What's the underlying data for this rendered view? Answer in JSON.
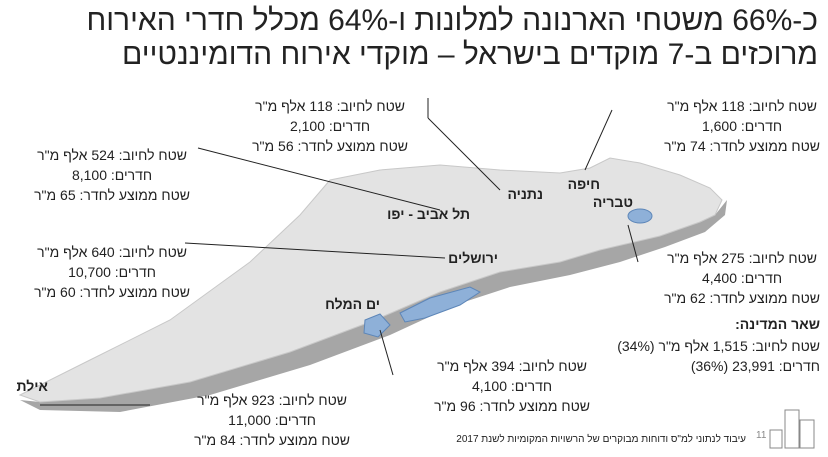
{
  "title": {
    "line1": "כ-66% משטחי הארנונה למלונות ו-64% מכלל חדרי האירוח",
    "line2": "מרוכזים ב-7 מוקדים בישראל – מוקדי אירוח הדומיננטיים"
  },
  "cities": {
    "netanya": "נתניה",
    "tel_aviv": "תל אביב - יפו",
    "haifa": "חיפה",
    "tiberias": "טבריה",
    "jerusalem": "ירושלים",
    "dead_sea": "ים המלח",
    "eilat": "אילת"
  },
  "stats": {
    "netanya": [
      "שטח לחיוב: 118 אלף מ\"ר",
      "חדרים: 2,100",
      "שטח ממוצע לחדר: 56 מ\"ר"
    ],
    "haifa": [
      "שטח לחיוב: 118 אלף מ\"ר",
      "חדרים: 1,600",
      "שטח ממוצע לחדר: 74 מ\"ר"
    ],
    "tel_aviv": [
      "שטח לחיוב: 524 אלף מ\"ר",
      "חדרים: 8,100",
      "שטח ממוצע לחדר: 65 מ\"ר"
    ],
    "jerusalem": [
      "שטח לחיוב: 640 אלף מ\"ר",
      "חדרים: 10,700",
      "שטח ממוצע לחדר: 60 מ\"ר"
    ],
    "tiberias": [
      "שטח לחיוב: 275 אלף מ\"ר",
      "חדרים: 4,400",
      "שטח ממוצע לחדר: 62 מ\"ר"
    ],
    "dead_sea": [
      "שטח לחיוב: 394 אלף מ\"ר",
      "חדרים: 4,100",
      "שטח ממוצע לחדר: 96 מ\"ר"
    ],
    "eilat": [
      "שטח לחיוב: 923 אלף מ\"ר",
      "חדרים: 11,000",
      "שטח ממוצע לחדר: 84 מ\"ר"
    ]
  },
  "rest": {
    "heading": "שאר המדינה:",
    "lines": [
      "שטח לחיוב: 1,515 אלף מ\"ר (34%)",
      "חדרים: 23,991 (36%)"
    ]
  },
  "footnote": "עיבוד לנתוני למ\"ס ודוחות מבוקרים של הרשויות המקומיות לשנת 2017",
  "page_number": "11"
}
